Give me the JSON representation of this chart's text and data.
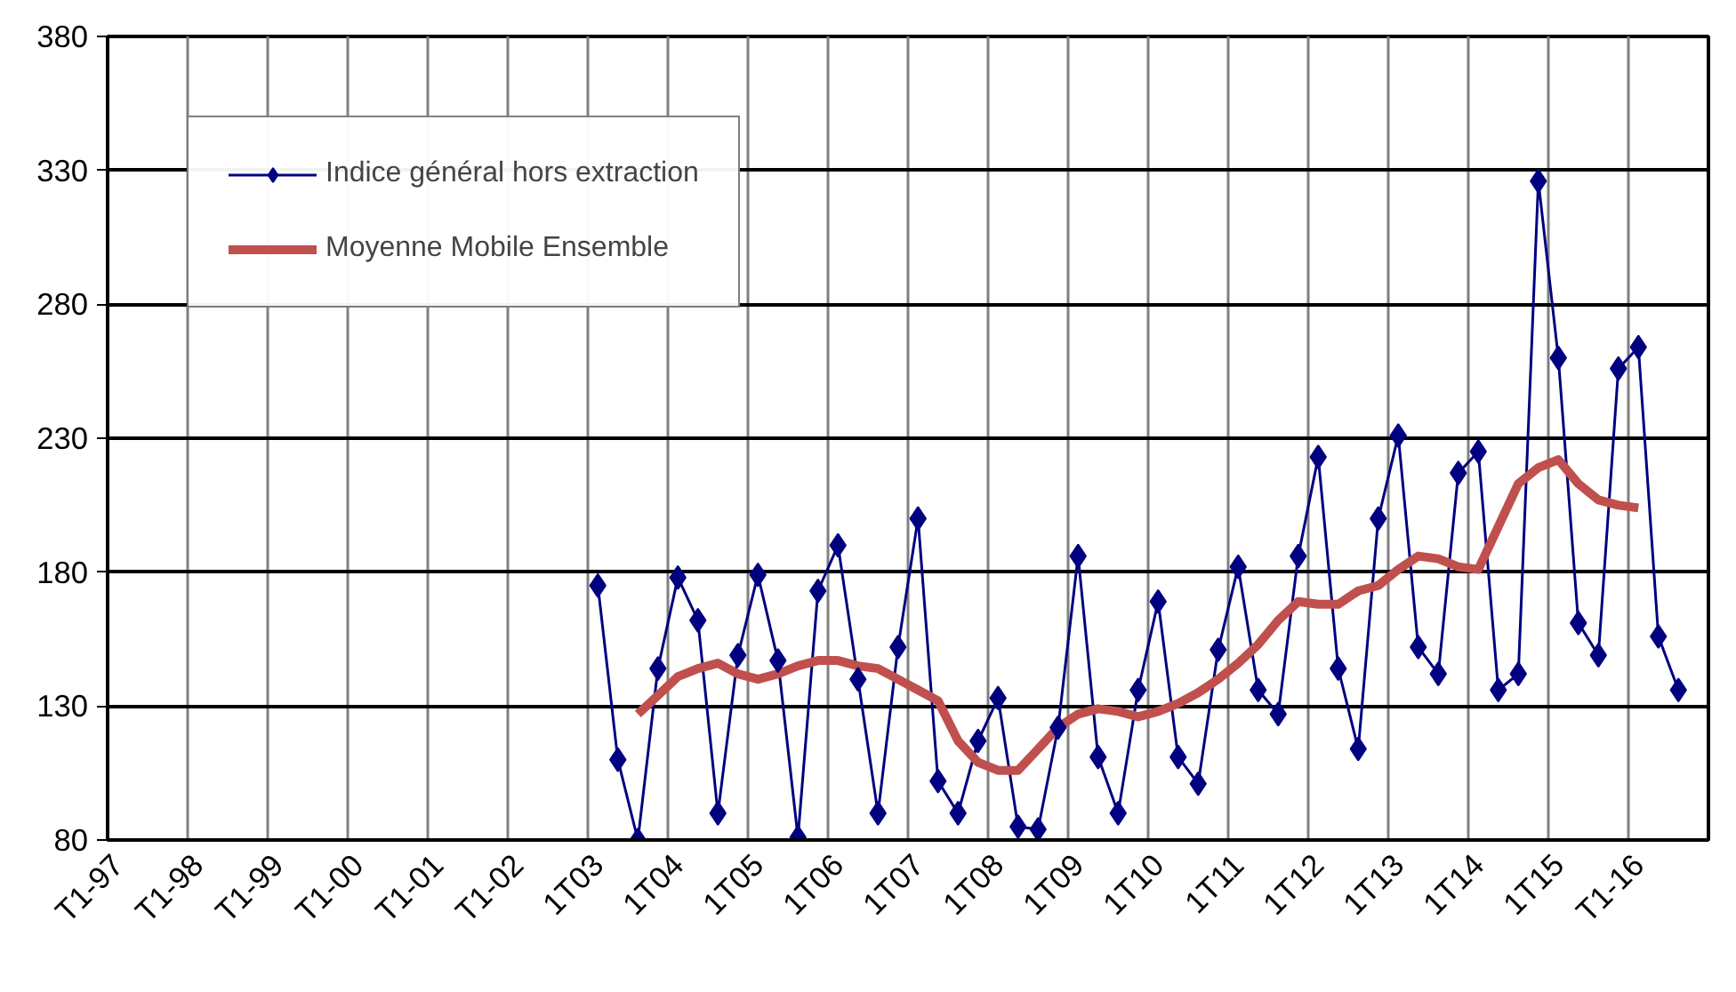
{
  "chart_data": {
    "type": "line",
    "categories": [
      "T1-97",
      null,
      null,
      null,
      "T1-98",
      null,
      null,
      null,
      "T1-99",
      null,
      null,
      null,
      "T1-00",
      null,
      null,
      null,
      "T1-01",
      null,
      null,
      null,
      "T1-02",
      null,
      null,
      null,
      "1T03",
      null,
      null,
      null,
      "1T04",
      null,
      null,
      null,
      "1T05",
      null,
      null,
      null,
      "1T06",
      null,
      null,
      null,
      "1T07",
      null,
      null,
      null,
      "1T08",
      null,
      null,
      null,
      "1T09",
      null,
      null,
      null,
      "1T10",
      null,
      null,
      null,
      "1T11",
      null,
      null,
      null,
      "1T12",
      null,
      null,
      null,
      "1T13",
      null,
      null,
      null,
      "1T14",
      null,
      null,
      null,
      "1T15",
      null,
      null,
      null,
      "T1-16",
      null,
      null,
      null
    ],
    "series": [
      {
        "name": "Indice général hors extraction",
        "color": "#000080",
        "marker": "diamond",
        "values": [
          null,
          null,
          null,
          null,
          null,
          null,
          null,
          null,
          null,
          null,
          null,
          null,
          null,
          null,
          null,
          null,
          null,
          null,
          null,
          null,
          null,
          null,
          null,
          null,
          175,
          110,
          80,
          144,
          178,
          162,
          90,
          149,
          179,
          147,
          81,
          173,
          190,
          140,
          90,
          152,
          200,
          102,
          90,
          117,
          133,
          85,
          84,
          122,
          186,
          111,
          90,
          136,
          169,
          111,
          101,
          151,
          182,
          136,
          127,
          186,
          223,
          144,
          114,
          200,
          231,
          152,
          142,
          217,
          225,
          136,
          142,
          326,
          260,
          161,
          149,
          256,
          264,
          156,
          136,
          null
        ]
      },
      {
        "name": "Moyenne Mobile Ensemble",
        "color": "#c0504d",
        "marker": "none",
        "values": [
          null,
          null,
          null,
          null,
          null,
          null,
          null,
          null,
          null,
          null,
          null,
          null,
          null,
          null,
          null,
          null,
          null,
          null,
          null,
          null,
          null,
          null,
          null,
          null,
          null,
          null,
          127,
          134,
          141,
          144,
          146,
          142,
          140,
          142,
          145,
          147,
          147,
          145,
          144,
          140,
          136,
          132,
          117,
          109,
          106,
          106,
          114,
          122,
          127,
          129,
          128,
          126,
          128,
          131,
          135,
          140,
          146,
          153,
          162,
          169,
          168,
          168,
          173,
          175,
          181,
          186,
          185,
          182,
          181,
          197,
          213,
          219,
          222,
          213,
          207,
          205,
          204,
          null,
          null,
          null
        ]
      }
    ],
    "ylim": [
      80,
      380
    ],
    "yticks": [
      80,
      130,
      180,
      230,
      280,
      330,
      380
    ],
    "grid": true,
    "legend": "top left"
  }
}
